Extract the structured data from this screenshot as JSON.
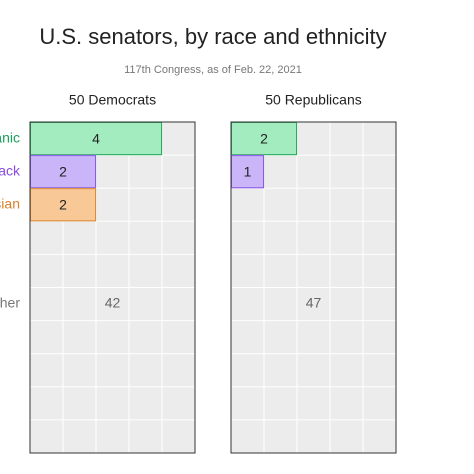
{
  "chart_data": {
    "type": "waffle",
    "title": "U.S. senators, by race and ethnicity",
    "subtitle": "117th Congress, as of Feb. 22, 2021",
    "categories": [
      "Hispanic",
      "Black",
      "Asian",
      "Other"
    ],
    "colors": [
      "#a3ecbf",
      "#c9b5f7",
      "#f8c896",
      "#ececec"
    ],
    "edge_colors": [
      "#2fa862",
      "#8a5ce6",
      "#d98a3a",
      "#ececec"
    ],
    "label_colors": [
      "#1aa15a",
      "#8a4de0",
      "#d9822b",
      "#777777"
    ],
    "panels": [
      {
        "title": "50 Democrats",
        "values": [
          4,
          2,
          2,
          42
        ]
      },
      {
        "title": "50 Republicans",
        "values": [
          2,
          1,
          0,
          47
        ]
      }
    ]
  }
}
